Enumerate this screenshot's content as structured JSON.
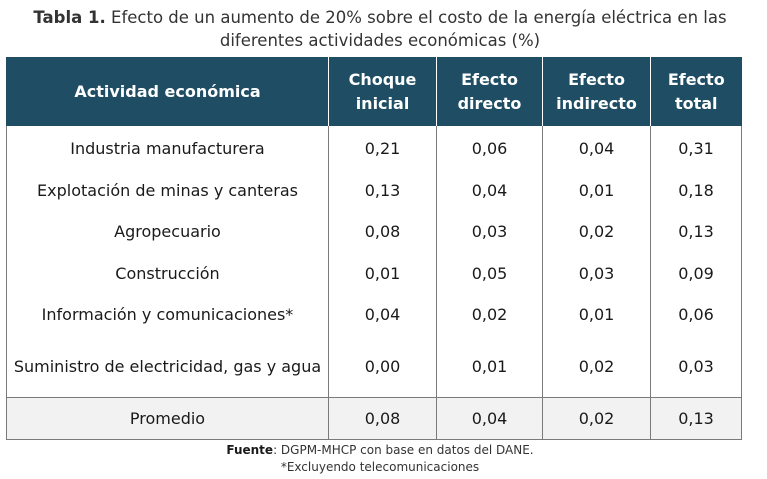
{
  "caption": {
    "label": "Tabla 1.",
    "text": "Efecto de un aumento de 20% sobre el costo de la energía eléctrica en las diferentes actividades económicas (%)"
  },
  "table": {
    "headers": [
      "Actividad económica",
      "Choque inicial",
      "Efecto directo",
      "Efecto indirecto",
      "Efecto total"
    ],
    "rows": [
      [
        "Industria manufacturera",
        "0,21",
        "0,06",
        "0,04",
        "0,31"
      ],
      [
        "Explotación de minas y canteras",
        "0,13",
        "0,04",
        "0,01",
        "0,18"
      ],
      [
        "Agropecuario",
        "0,08",
        "0,03",
        "0,02",
        "0,13"
      ],
      [
        "Construcción",
        "0,01",
        "0,05",
        "0,03",
        "0,09"
      ],
      [
        "Información y comunicaciones*",
        "0,04",
        "0,02",
        "0,01",
        "0,06"
      ],
      [
        "Suministro de electricidad, gas y agua",
        "0,00",
        "0,01",
        "0,02",
        "0,03"
      ]
    ],
    "average": [
      "Promedio",
      "0,08",
      "0,04",
      "0,02",
      "0,13"
    ]
  },
  "source": {
    "label": "Fuente",
    "text": ": DGPM-MHCP con base en datos del DANE.",
    "note": "*Excluyendo telecomunicaciones"
  }
}
